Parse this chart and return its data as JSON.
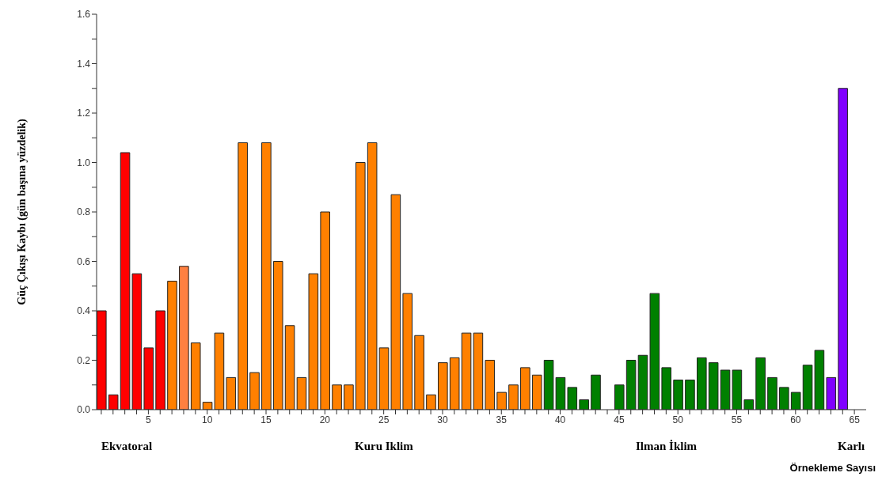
{
  "chart_data": {
    "type": "bar",
    "xlabel": "Örnekleme Sayısı",
    "ylabel": "Güç Çıkışı Kaybı (gün başına yüzdelik)",
    "x": [
      1,
      2,
      3,
      4,
      5,
      6,
      7,
      8,
      9,
      10,
      11,
      12,
      13,
      14,
      15,
      16,
      17,
      18,
      19,
      20,
      21,
      22,
      23,
      24,
      25,
      26,
      27,
      28,
      29,
      30,
      31,
      32,
      33,
      34,
      35,
      36,
      37,
      38,
      39,
      40,
      41,
      42,
      43,
      44,
      45,
      46,
      47,
      48,
      49,
      50,
      51,
      52,
      53,
      54,
      55,
      56,
      57,
      58,
      59,
      60,
      61,
      62,
      63,
      64
    ],
    "values": [
      0.4,
      0.06,
      1.04,
      0.55,
      0.25,
      0.4,
      0.52,
      0.58,
      0.27,
      0.03,
      0.31,
      0.13,
      1.08,
      0.15,
      1.08,
      0.6,
      0.34,
      0.13,
      0.55,
      0.8,
      0.1,
      0.1,
      1.0,
      1.08,
      0.25,
      0.87,
      0.47,
      0.3,
      0.06,
      0.19,
      0.21,
      0.31,
      0.31,
      0.2,
      0.07,
      0.1,
      0.17,
      0.14,
      0.2,
      0.13,
      0.09,
      0.04,
      0.14,
      null,
      0.1,
      0.2,
      0.22,
      0.47,
      0.17,
      0.12,
      0.12,
      0.21,
      0.19,
      0.16,
      0.16,
      0.04,
      0.21,
      0.13,
      0.09,
      0.07,
      0.18,
      0.24,
      0.13,
      1.3
    ],
    "colors": [
      "#ff0000",
      "#ff0000",
      "#ff0000",
      "#ff0000",
      "#ff0000",
      "#ff0000",
      "#ff8000",
      "#ff8040",
      "#ff8000",
      "#ff8000",
      "#ff8000",
      "#ff8000",
      "#ff8000",
      "#ff8000",
      "#ff8000",
      "#ff8000",
      "#ff8000",
      "#ff8000",
      "#ff8000",
      "#ff8000",
      "#ff8000",
      "#ff8000",
      "#ff8000",
      "#ff8000",
      "#ff8000",
      "#ff8000",
      "#ff8000",
      "#ff8000",
      "#ff8000",
      "#ff8000",
      "#ff8000",
      "#ff8000",
      "#ff8000",
      "#ff8000",
      "#ff8000",
      "#ff8000",
      "#ff8000",
      "#ff8000",
      "#008000",
      "#008000",
      "#008000",
      "#008000",
      "#008000",
      "#008000",
      "#008000",
      "#008000",
      "#008000",
      "#008000",
      "#008000",
      "#008000",
      "#008000",
      "#008000",
      "#008000",
      "#008000",
      "#008000",
      "#008000",
      "#008000",
      "#008000",
      "#008000",
      "#008000",
      "#008000",
      "#008000",
      "#8000ff",
      "#8000ff"
    ],
    "xlim": [
      0.6,
      66
    ],
    "xticks": [
      {
        "value": 1,
        "label": null
      },
      {
        "value": 2,
        "label": null
      },
      {
        "value": 3,
        "label": null
      },
      {
        "value": 4,
        "label": null
      },
      5,
      {
        "value": 6,
        "label": null
      },
      {
        "value": 7,
        "label": null
      },
      {
        "value": 8,
        "label": null
      },
      {
        "value": 9,
        "label": null
      },
      10,
      {
        "value": 11,
        "label": null
      },
      {
        "value": 12,
        "label": null
      },
      {
        "value": 13,
        "label": null
      },
      {
        "value": 14,
        "label": null
      },
      15,
      {
        "value": 16,
        "label": null
      },
      {
        "value": 17,
        "label": null
      },
      {
        "value": 18,
        "label": null
      },
      {
        "value": 19,
        "label": null
      },
      20,
      {
        "value": 21,
        "label": null
      },
      {
        "value": 22,
        "label": null
      },
      {
        "value": 23,
        "label": null
      },
      {
        "value": 24,
        "label": null
      },
      25,
      {
        "value": 26,
        "label": null
      },
      {
        "value": 27,
        "label": null
      },
      {
        "value": 28,
        "label": null
      },
      {
        "value": 29,
        "label": null
      },
      30,
      {
        "value": 31,
        "label": null
      },
      {
        "value": 32,
        "label": null
      },
      {
        "value": 33,
        "label": null
      },
      {
        "value": 34,
        "label": null
      },
      35,
      {
        "value": 36,
        "label": null
      },
      {
        "value": 37,
        "label": null
      },
      {
        "value": 38,
        "label": null
      },
      {
        "value": 39,
        "label": null
      },
      40,
      {
        "value": 41,
        "label": null
      },
      {
        "value": 42,
        "label": null
      },
      {
        "value": 43,
        "label": null
      },
      {
        "value": 44,
        "label": null
      },
      45,
      {
        "value": 46,
        "label": null
      },
      {
        "value": 47,
        "label": null
      },
      {
        "value": 48,
        "label": null
      },
      {
        "value": 49,
        "label": null
      },
      50,
      {
        "value": 51,
        "label": null
      },
      {
        "value": 52,
        "label": null
      },
      {
        "value": 53,
        "label": null
      },
      {
        "value": 54,
        "label": null
      },
      55,
      {
        "value": 56,
        "label": null
      },
      {
        "value": 57,
        "label": null
      },
      {
        "value": 58,
        "label": null
      },
      {
        "value": 59,
        "label": null
      },
      60,
      {
        "value": 61,
        "label": null
      },
      {
        "value": 62,
        "label": null
      },
      {
        "value": 63,
        "label": null
      },
      {
        "value": 64,
        "label": null
      },
      65
    ],
    "ylim": [
      0,
      1.6
    ],
    "yticks": [
      {
        "value": 0,
        "label": "0.0"
      },
      {
        "value": 0.1,
        "label": null
      },
      {
        "value": 0.2,
        "label": "0.2"
      },
      {
        "value": 0.3,
        "label": null
      },
      {
        "value": 0.4,
        "label": "0.4"
      },
      {
        "value": 0.5,
        "label": null
      },
      {
        "value": 0.6,
        "label": "0.6"
      },
      {
        "value": 0.7,
        "label": null
      },
      {
        "value": 0.8,
        "label": "0.8"
      },
      {
        "value": 0.9,
        "label": null
      },
      {
        "value": 1.0,
        "label": "1.0"
      },
      {
        "value": 1.1,
        "label": null
      },
      {
        "value": 1.2,
        "label": "1.2"
      },
      {
        "value": 1.3,
        "label": null
      },
      {
        "value": 1.4,
        "label": "1.4"
      },
      {
        "value": 1.5,
        "label": null
      },
      {
        "value": 1.6,
        "label": "1.6"
      }
    ],
    "annotations": [
      "Ekvatoral",
      "Kuru Iklim",
      "Ilman İklim",
      "Karlı"
    ]
  }
}
